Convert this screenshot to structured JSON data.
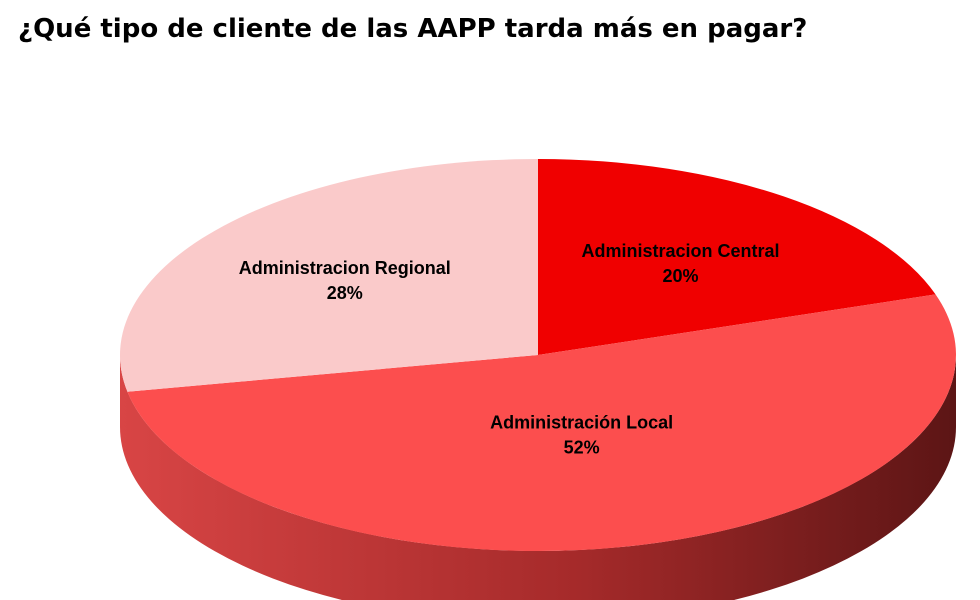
{
  "slide": {
    "title": "¿Qué tipo de cliente de las AAPP tarda más en pagar?"
  },
  "chart_data": {
    "type": "pie",
    "title": "",
    "style": "3d-tilted",
    "slices": [
      {
        "label": "Administracion Central",
        "value": 20,
        "display": "20%",
        "color": "#f00000"
      },
      {
        "label": "Administración Local",
        "value": 52,
        "display": "52%",
        "color": "#fc4e4e"
      },
      {
        "label": "Administracion Regional",
        "value": 28,
        "display": "28%",
        "color": "#facaca"
      }
    ],
    "legend": "none"
  }
}
